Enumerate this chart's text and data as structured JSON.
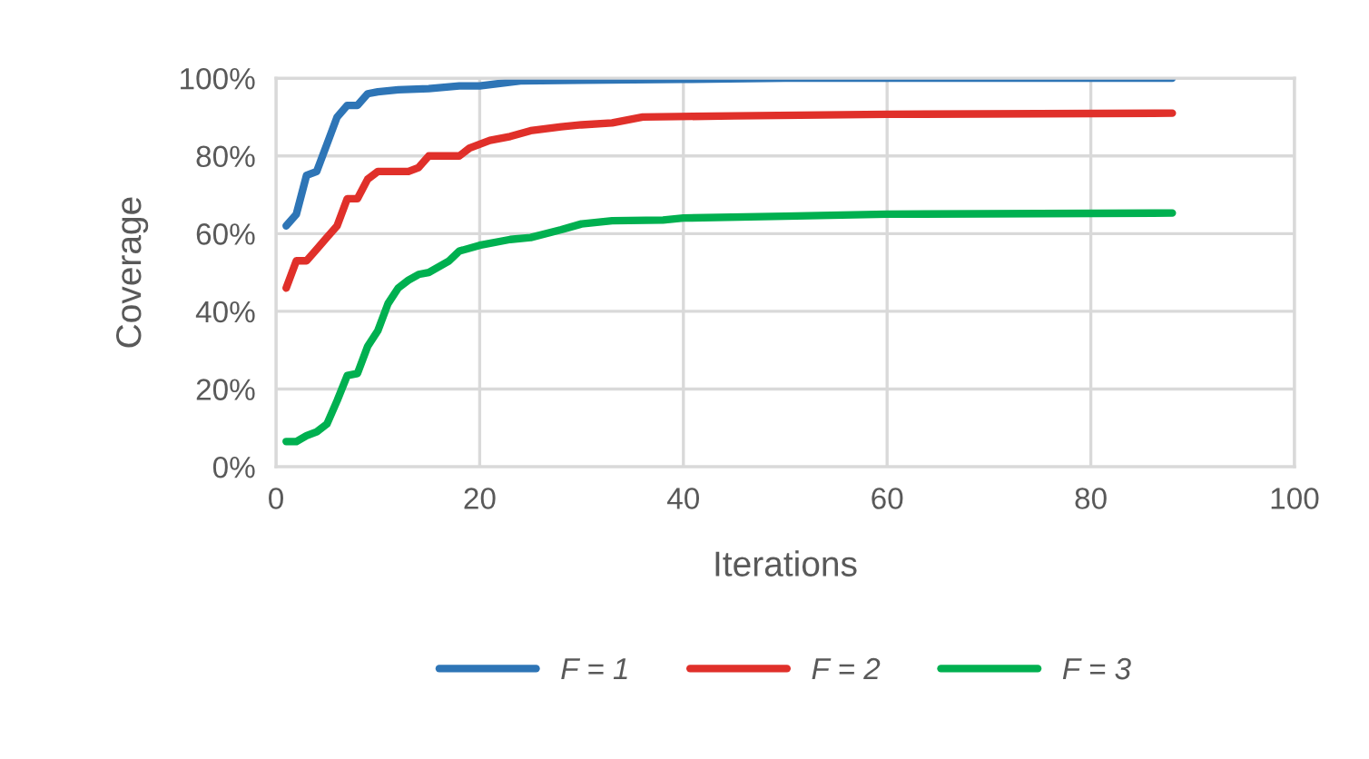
{
  "chart_data": {
    "type": "line",
    "xlabel": "Iterations",
    "ylabel": "Coverage",
    "xlim": [
      0,
      100
    ],
    "xticks": [
      0,
      20,
      40,
      60,
      80,
      100
    ],
    "ylim": [
      0,
      100
    ],
    "yticks": [
      {
        "value": 0,
        "label": "0%"
      },
      {
        "value": 20,
        "label": "20%"
      },
      {
        "value": 40,
        "label": "40%"
      },
      {
        "value": 60,
        "label": "60%"
      },
      {
        "value": 80,
        "label": "80%"
      },
      {
        "value": 100,
        "label": "100%"
      }
    ],
    "grid": true,
    "legend": "bottom",
    "marker": "none",
    "line_style": "solid",
    "series": [
      {
        "name": "F = 1",
        "color": "#2e75b6",
        "x": [
          1,
          2,
          3,
          4,
          5,
          6,
          7,
          8,
          9,
          10,
          12,
          15,
          18,
          20,
          24,
          30,
          40,
          50,
          88
        ],
        "values": [
          62,
          65,
          75,
          76,
          83,
          90,
          93,
          93,
          96,
          96.5,
          97,
          97.3,
          98,
          98,
          99.3,
          99.5,
          99.7,
          100,
          100
        ]
      },
      {
        "name": "F = 2",
        "color": "#e0302a",
        "x": [
          1,
          2,
          3,
          4,
          5,
          6,
          7,
          8,
          9,
          10,
          13,
          14,
          15,
          18,
          19,
          21,
          23,
          25,
          28,
          30,
          33,
          36,
          45,
          60,
          88
        ],
        "values": [
          46,
          53,
          53,
          56,
          59,
          62,
          69,
          69,
          74,
          76,
          76,
          77,
          80,
          80,
          82,
          84,
          85,
          86.5,
          87.5,
          88,
          88.5,
          90,
          90.3,
          90.7,
          91
        ]
      },
      {
        "name": "F = 3",
        "color": "#00b050",
        "x": [
          1,
          2,
          3,
          4,
          5,
          6,
          7,
          8,
          9,
          10,
          11,
          12,
          13,
          14,
          15,
          17,
          18,
          20,
          23,
          25,
          28,
          30,
          33,
          38,
          40,
          50,
          60,
          88
        ],
        "values": [
          6.5,
          6.5,
          8,
          9,
          11,
          17,
          23.5,
          24,
          31,
          35,
          42,
          46,
          48,
          49.5,
          50,
          53,
          55.5,
          57,
          58.5,
          59,
          61,
          62.5,
          63.3,
          63.5,
          64,
          64.5,
          65,
          65.3
        ]
      }
    ]
  }
}
